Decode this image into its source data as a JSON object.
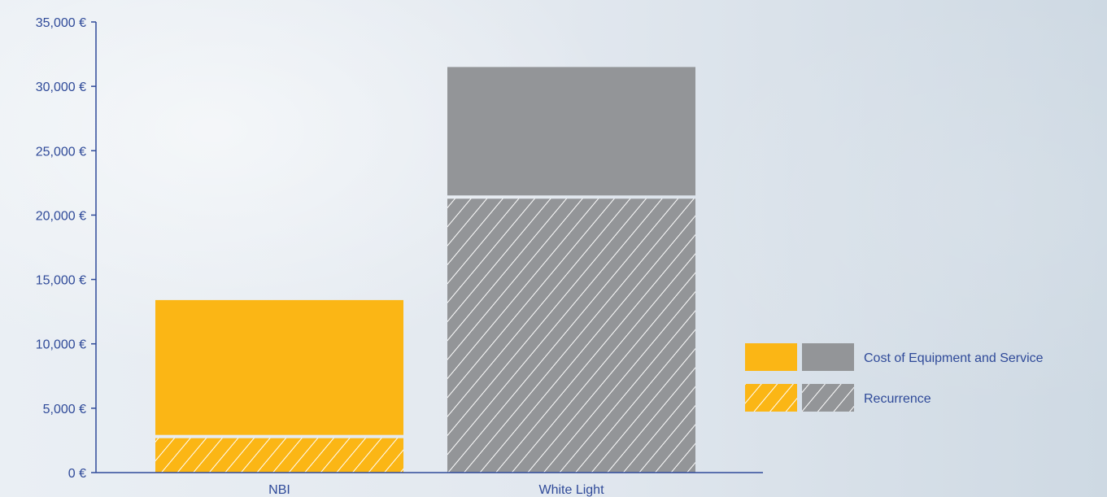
{
  "chart_data": {
    "type": "bar",
    "stacked": true,
    "categories": [
      "NBI",
      "White Light"
    ],
    "series": [
      {
        "name": "Recurrence",
        "pattern": "hatched",
        "values": [
          2800,
          21400
        ]
      },
      {
        "name": "Cost of Equipment and Service",
        "pattern": "solid",
        "values": [
          10600,
          10100
        ]
      }
    ],
    "bar_colors": [
      "#fbb615",
      "#939598"
    ],
    "ylim": [
      0,
      35000
    ],
    "yticks": [
      0,
      5000,
      10000,
      15000,
      20000,
      25000,
      30000,
      35000
    ],
    "ytick_labels": [
      "0 €",
      "5,000 €",
      "10,000 €",
      "15,000 €",
      "20,000 €",
      "25,000 €",
      "30,000 €",
      "35,000 €"
    ],
    "title": "",
    "xlabel": "",
    "ylabel": "",
    "grid": false,
    "legend_position": "right",
    "axis_color": "#2f4a99"
  }
}
